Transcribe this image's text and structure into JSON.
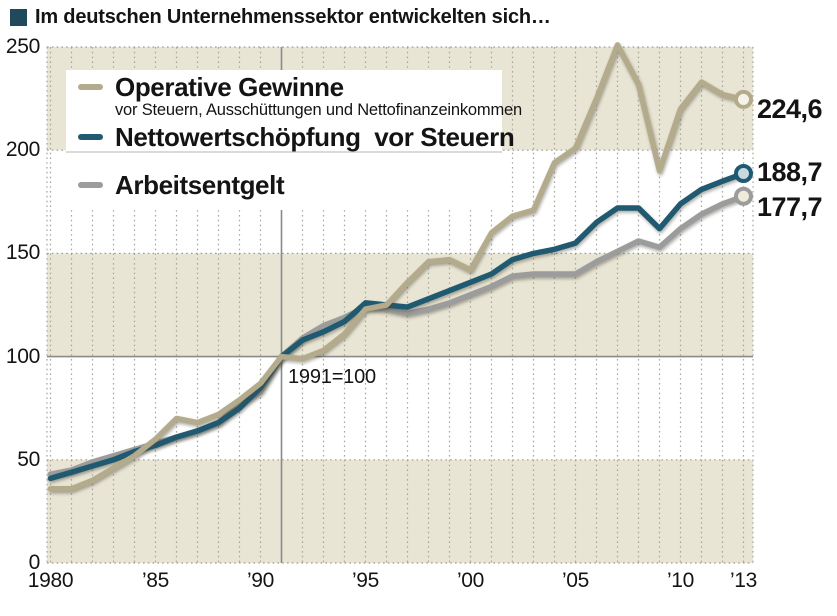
{
  "header": {
    "title": "Im deutschen Unternehmenssektor entwickelten sich…",
    "bullet_color": "#20495c"
  },
  "chart_data": {
    "type": "line",
    "title": "Im deutschen Unternehmenssektor entwickelten sich…",
    "annotation": "1991=100",
    "ref_year": 1991,
    "ref_value": 100,
    "ylim": [
      0,
      250
    ],
    "yticks": [
      0,
      50,
      100,
      150,
      200,
      250
    ],
    "xticks": [
      {
        "year": 1980,
        "label": "1980"
      },
      {
        "year": 1985,
        "label": "’85"
      },
      {
        "year": 1990,
        "label": "’90"
      },
      {
        "year": 1995,
        "label": "’95"
      },
      {
        "year": 2000,
        "label": "’00"
      },
      {
        "year": 2005,
        "label": "’05"
      },
      {
        "year": 2010,
        "label": "’10"
      },
      {
        "year": 2013,
        "label": "’13"
      }
    ],
    "x": [
      1980,
      1981,
      1982,
      1983,
      1984,
      1985,
      1986,
      1987,
      1988,
      1989,
      1990,
      1991,
      1992,
      1993,
      1994,
      1995,
      1996,
      1997,
      1998,
      1999,
      2000,
      2001,
      2002,
      2003,
      2004,
      2005,
      2006,
      2007,
      2008,
      2009,
      2010,
      2011,
      2012,
      2013
    ],
    "band_color": "#e9e5d4",
    "grid_color": "#a8a89e",
    "ref_line_color": "#8a8a8a",
    "legend_position": "upper left",
    "series": [
      {
        "name": "Operative Gewinne",
        "subtitle": "vor Steuern, Ausschüttungen und Nettofinanzeinkommen",
        "color": "#b3ab8c",
        "marker_fill": "#f5f2e8",
        "end_label": "224,6",
        "values": [
          36,
          36,
          40,
          46,
          52,
          60,
          70,
          68,
          72,
          79,
          87,
          100,
          99,
          103,
          111,
          123,
          125,
          136,
          146,
          147,
          142,
          160,
          168,
          171,
          194,
          201,
          225,
          251,
          232,
          190,
          220,
          233,
          227,
          224.6
        ]
      },
      {
        "name": "Nettowertschöpfung  vor Steuern",
        "subtitle": "",
        "color": "#1f5a71",
        "marker_fill": "#c9d9e0",
        "end_label": "188,7",
        "values": [
          41,
          44,
          47,
          50,
          54,
          57,
          61,
          64,
          68,
          75,
          85,
          100,
          108,
          112,
          117,
          126,
          125,
          124,
          128,
          132,
          136,
          140,
          147,
          150,
          152,
          155,
          165,
          172,
          172,
          162,
          174,
          181,
          185,
          188.7
        ]
      },
      {
        "name": "Arbeitsentgelt",
        "subtitle": "",
        "color": "#9c9c9c",
        "marker_fill": "#eeeadc",
        "end_label": "177,7",
        "values": [
          43,
          45,
          49,
          52,
          55,
          58,
          61,
          64,
          68,
          77,
          83,
          100,
          109,
          115,
          119,
          124,
          123,
          121,
          123,
          126,
          130,
          134,
          139,
          140,
          140,
          140,
          146,
          151,
          156,
          153,
          162,
          169,
          174,
          177.7
        ]
      }
    ]
  }
}
